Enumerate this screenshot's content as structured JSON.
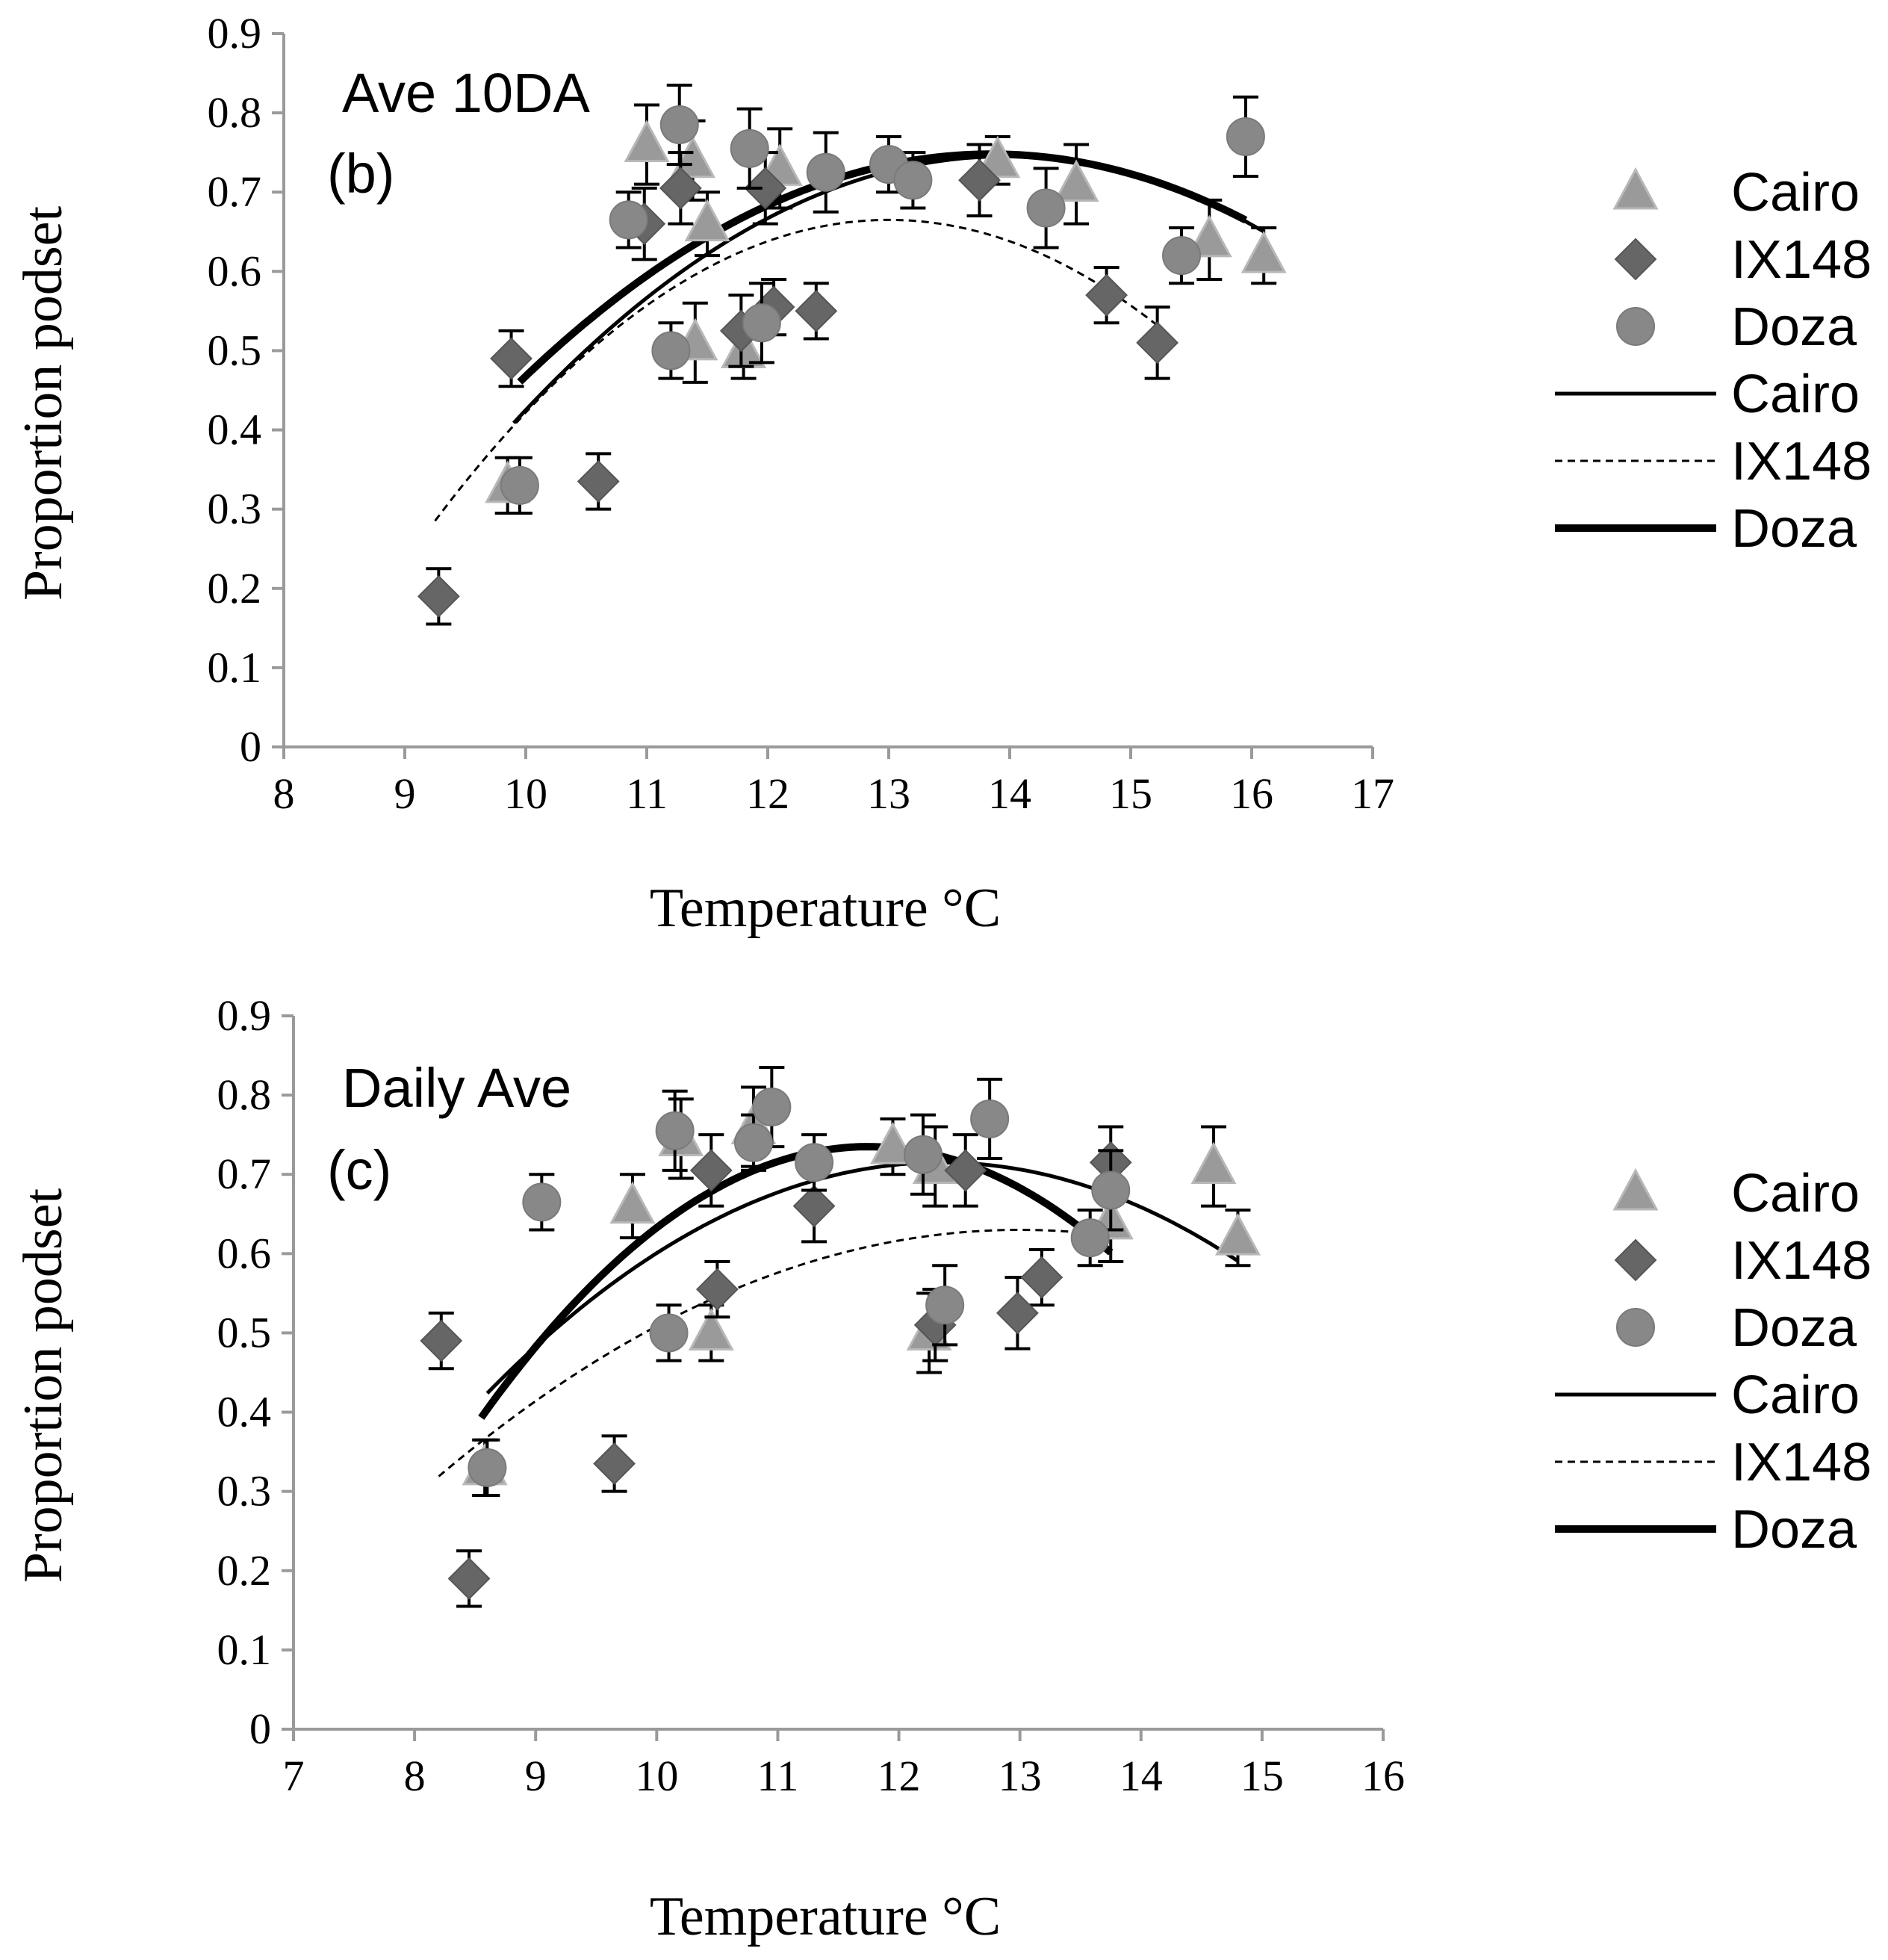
{
  "colors": {
    "cairo_marker": "#9a9a9a",
    "ix148_marker": "#666666",
    "doza_marker": "#888888",
    "curve": "#000000",
    "axis": "#9a9a9a"
  },
  "chart_data": [
    {
      "type": "scatter",
      "panel_title": "Ave 10DA",
      "panel_tag": "(b)",
      "xlabel": "Temperature °C",
      "ylabel": "Proportion podset",
      "xlim": [
        8,
        17
      ],
      "ylim": [
        0,
        0.9
      ],
      "x_ticks": [
        "8",
        "9",
        "10",
        "11",
        "12",
        "13",
        "14",
        "15",
        "16",
        "17"
      ],
      "y_ticks": [
        "0",
        "0.1",
        "0.2",
        "0.3",
        "0.4",
        "0.5",
        "0.6",
        "0.7",
        "0.8",
        "0.9"
      ],
      "series": [
        {
          "name": "Cairo",
          "kind": "points",
          "marker": "triangle",
          "points": [
            {
              "x": 9.85,
              "y": 0.33,
              "err": 0.035
            },
            {
              "x": 11.0,
              "y": 0.76,
              "err": 0.05
            },
            {
              "x": 11.38,
              "y": 0.74,
              "err": 0.05
            },
            {
              "x": 11.5,
              "y": 0.66,
              "err": 0.04
            },
            {
              "x": 11.4,
              "y": 0.51,
              "err": 0.05
            },
            {
              "x": 11.8,
              "y": 0.5,
              "err": 0.035
            },
            {
              "x": 12.1,
              "y": 0.73,
              "err": 0.05
            },
            {
              "x": 13.9,
              "y": 0.74,
              "err": 0.03
            },
            {
              "x": 14.55,
              "y": 0.71,
              "err": 0.05
            },
            {
              "x": 15.65,
              "y": 0.64,
              "err": 0.05
            },
            {
              "x": 16.1,
              "y": 0.62,
              "err": 0.035
            }
          ]
        },
        {
          "name": "IX148",
          "kind": "points",
          "marker": "diamond",
          "points": [
            {
              "x": 9.28,
              "y": 0.19,
              "err": 0.035
            },
            {
              "x": 9.88,
              "y": 0.49,
              "err": 0.035
            },
            {
              "x": 10.6,
              "y": 0.335,
              "err": 0.035
            },
            {
              "x": 10.98,
              "y": 0.66,
              "err": 0.045
            },
            {
              "x": 11.28,
              "y": 0.705,
              "err": 0.045
            },
            {
              "x": 11.78,
              "y": 0.525,
              "err": 0.045
            },
            {
              "x": 11.98,
              "y": 0.705,
              "err": 0.045
            },
            {
              "x": 12.05,
              "y": 0.555,
              "err": 0.035
            },
            {
              "x": 12.4,
              "y": 0.55,
              "err": 0.035
            },
            {
              "x": 13.75,
              "y": 0.715,
              "err": 0.045
            },
            {
              "x": 14.8,
              "y": 0.57,
              "err": 0.035
            },
            {
              "x": 15.22,
              "y": 0.51,
              "err": 0.045
            }
          ]
        },
        {
          "name": "Doza",
          "kind": "points",
          "marker": "circle",
          "points": [
            {
              "x": 9.95,
              "y": 0.33,
              "err": 0.035
            },
            {
              "x": 10.85,
              "y": 0.665,
              "err": 0.035
            },
            {
              "x": 11.2,
              "y": 0.5,
              "err": 0.035
            },
            {
              "x": 11.27,
              "y": 0.785,
              "err": 0.05
            },
            {
              "x": 11.85,
              "y": 0.755,
              "err": 0.05
            },
            {
              "x": 11.95,
              "y": 0.535,
              "err": 0.05
            },
            {
              "x": 12.48,
              "y": 0.725,
              "err": 0.05
            },
            {
              "x": 13.0,
              "y": 0.735,
              "err": 0.035
            },
            {
              "x": 13.2,
              "y": 0.715,
              "err": 0.035
            },
            {
              "x": 14.3,
              "y": 0.68,
              "err": 0.05
            },
            {
              "x": 15.42,
              "y": 0.62,
              "err": 0.035
            },
            {
              "x": 15.95,
              "y": 0.77,
              "err": 0.05
            }
          ]
        },
        {
          "name": "Cairo",
          "kind": "fit",
          "style": "solid",
          "vertex_x": 13.95,
          "vertex_y": 0.745,
          "curvature": 0.0205,
          "x_range": [
            9.9,
            16.1
          ]
        },
        {
          "name": "IX148",
          "kind": "fit",
          "style": "dashed",
          "vertex_x": 13.0,
          "vertex_y": 0.665,
          "curvature": 0.027,
          "x_range": [
            9.25,
            15.3
          ]
        },
        {
          "name": "Doza",
          "kind": "fit",
          "style": "thick",
          "vertex_x": 13.85,
          "vertex_y": 0.748,
          "curvature": 0.0189,
          "x_range": [
            9.95,
            15.95
          ]
        }
      ]
    },
    {
      "type": "scatter",
      "panel_title": "Daily Ave",
      "panel_tag": "(c)",
      "xlabel": "Temperature °C",
      "ylabel": "Proportion podset",
      "xlim": [
        7,
        16
      ],
      "ylim": [
        0,
        0.9
      ],
      "x_ticks": [
        "7",
        "8",
        "9",
        "10",
        "11",
        "12",
        "13",
        "14",
        "15",
        "16"
      ],
      "y_ticks": [
        "0",
        "0.1",
        "0.2",
        "0.3",
        "0.4",
        "0.5",
        "0.6",
        "0.7",
        "0.8",
        "0.9"
      ],
      "series": [
        {
          "name": "Cairo",
          "kind": "points",
          "marker": "triangle",
          "points": [
            {
              "x": 8.58,
              "y": 0.33,
              "err": 0.035
            },
            {
              "x": 9.8,
              "y": 0.66,
              "err": 0.04
            },
            {
              "x": 10.2,
              "y": 0.745,
              "err": 0.05
            },
            {
              "x": 10.45,
              "y": 0.5,
              "err": 0.035
            },
            {
              "x": 10.8,
              "y": 0.76,
              "err": 0.05
            },
            {
              "x": 11.95,
              "y": 0.735,
              "err": 0.035
            },
            {
              "x": 12.25,
              "y": 0.5,
              "err": 0.05
            },
            {
              "x": 12.3,
              "y": 0.71,
              "err": 0.05
            },
            {
              "x": 13.75,
              "y": 0.64,
              "err": 0.05
            },
            {
              "x": 14.6,
              "y": 0.71,
              "err": 0.05
            },
            {
              "x": 14.8,
              "y": 0.62,
              "err": 0.035
            }
          ]
        },
        {
          "name": "IX148",
          "kind": "points",
          "marker": "diamond",
          "points": [
            {
              "x": 8.22,
              "y": 0.49,
              "err": 0.035
            },
            {
              "x": 8.45,
              "y": 0.19,
              "err": 0.035
            },
            {
              "x": 9.65,
              "y": 0.335,
              "err": 0.035
            },
            {
              "x": 10.45,
              "y": 0.705,
              "err": 0.045
            },
            {
              "x": 10.5,
              "y": 0.555,
              "err": 0.035
            },
            {
              "x": 11.3,
              "y": 0.66,
              "err": 0.045
            },
            {
              "x": 12.3,
              "y": 0.51,
              "err": 0.045
            },
            {
              "x": 12.55,
              "y": 0.705,
              "err": 0.045
            },
            {
              "x": 12.98,
              "y": 0.525,
              "err": 0.045
            },
            {
              "x": 13.18,
              "y": 0.57,
              "err": 0.035
            },
            {
              "x": 13.75,
              "y": 0.715,
              "err": 0.045
            }
          ]
        },
        {
          "name": "Doza",
          "kind": "points",
          "marker": "circle",
          "points": [
            {
              "x": 8.6,
              "y": 0.33,
              "err": 0.035
            },
            {
              "x": 9.05,
              "y": 0.665,
              "err": 0.035
            },
            {
              "x": 10.1,
              "y": 0.5,
              "err": 0.035
            },
            {
              "x": 10.15,
              "y": 0.755,
              "err": 0.05
            },
            {
              "x": 10.8,
              "y": 0.74,
              "err": 0.035
            },
            {
              "x": 10.95,
              "y": 0.785,
              "err": 0.05
            },
            {
              "x": 11.3,
              "y": 0.715,
              "err": 0.035
            },
            {
              "x": 12.2,
              "y": 0.725,
              "err": 0.05
            },
            {
              "x": 12.38,
              "y": 0.535,
              "err": 0.05
            },
            {
              "x": 12.75,
              "y": 0.77,
              "err": 0.05
            },
            {
              "x": 13.58,
              "y": 0.62,
              "err": 0.035
            },
            {
              "x": 13.75,
              "y": 0.68,
              "err": 0.05
            }
          ]
        },
        {
          "name": "Cairo",
          "kind": "fit",
          "style": "solid",
          "vertex_x": 12.35,
          "vertex_y": 0.715,
          "curvature": 0.0207,
          "x_range": [
            8.6,
            14.8
          ]
        },
        {
          "name": "IX148",
          "kind": "fit",
          "style": "dashed",
          "vertex_x": 13.0,
          "vertex_y": 0.63,
          "curvature": 0.0135,
          "x_range": [
            8.2,
            13.6
          ]
        },
        {
          "name": "Doza",
          "kind": "fit",
          "style": "thick",
          "vertex_x": 11.75,
          "vertex_y": 0.735,
          "curvature": 0.0334,
          "x_range": [
            8.55,
            13.75
          ]
        }
      ]
    }
  ],
  "legend": [
    {
      "label": "Cairo",
      "symbol": "triangle"
    },
    {
      "label": "IX148",
      "symbol": "diamond"
    },
    {
      "label": "Doza",
      "symbol": "circle"
    },
    {
      "label": "Cairo",
      "symbol": "line-solid"
    },
    {
      "label": "IX148",
      "symbol": "line-dashed"
    },
    {
      "label": "Doza",
      "symbol": "line-thick"
    }
  ]
}
